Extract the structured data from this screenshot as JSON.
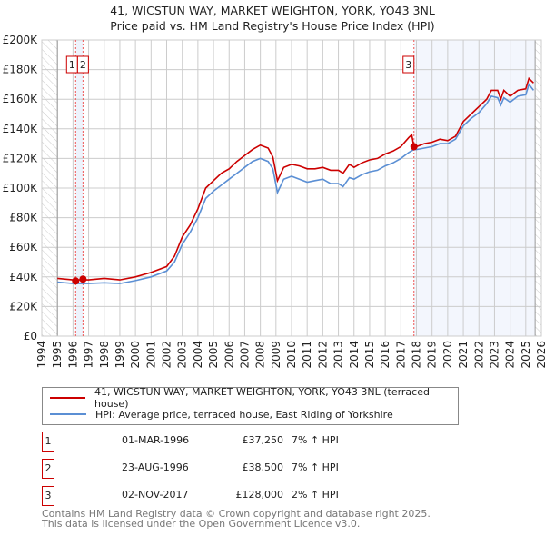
{
  "title_line1": "41, WICSTUN WAY, MARKET WEIGHTON, YORK, YO43 3NL",
  "title_line2": "Price paid vs. HM Land Registry's House Price Index (HPI)",
  "chart_data": {
    "type": "line",
    "xlim": [
      1994,
      2026
    ],
    "ylim": [
      0,
      200000
    ],
    "x_ticks": [
      "1994",
      "1995",
      "1996",
      "1997",
      "1998",
      "1999",
      "2000",
      "2001",
      "2002",
      "2003",
      "2004",
      "2005",
      "2006",
      "2007",
      "2008",
      "2009",
      "2010",
      "2011",
      "2012",
      "2013",
      "2014",
      "2015",
      "2016",
      "2017",
      "2018",
      "2019",
      "2020",
      "2021",
      "2022",
      "2023",
      "2024",
      "2025",
      "2026"
    ],
    "y_ticks": [
      {
        "v": 0,
        "label": "£0"
      },
      {
        "v": 20000,
        "label": "£20K"
      },
      {
        "v": 40000,
        "label": "£40K"
      },
      {
        "v": 60000,
        "label": "£60K"
      },
      {
        "v": 80000,
        "label": "£80K"
      },
      {
        "v": 100000,
        "label": "£100K"
      },
      {
        "v": 120000,
        "label": "£120K"
      },
      {
        "v": 140000,
        "label": "£140K"
      },
      {
        "v": 160000,
        "label": "£160K"
      },
      {
        "v": 180000,
        "label": "£180K"
      },
      {
        "v": 200000,
        "label": "£200K"
      }
    ],
    "grid": true,
    "data_range": [
      1995,
      2025.6
    ],
    "series": [
      {
        "name": "41, WICSTUN WAY, MARKET WEIGHTON, YORK, YO43 3NL (terraced house)",
        "color": "#cc0000",
        "x": [
          1995,
          1996,
          1997,
          1998,
          1999,
          2000,
          2001,
          2002,
          2002.5,
          2003,
          2003.5,
          2004,
          2004.5,
          2005,
          2005.5,
          2006,
          2006.5,
          2007,
          2007.5,
          2008,
          2008.5,
          2008.8,
          2009.1,
          2009.5,
          2010,
          2010.5,
          2011,
          2011.5,
          2012,
          2012.5,
          2013,
          2013.3,
          2013.7,
          2014,
          2014.5,
          2015,
          2015.5,
          2016,
          2016.5,
          2017,
          2017.5,
          2017.7,
          2017.84,
          2018,
          2018.5,
          2019,
          2019.5,
          2020,
          2020.5,
          2021,
          2021.5,
          2022,
          2022.5,
          2022.8,
          2023.2,
          2023.4,
          2023.6,
          2024,
          2024.5,
          2025,
          2025.2,
          2025.5
        ],
        "y": [
          39000,
          38000,
          38000,
          39000,
          38000,
          40000,
          43000,
          47000,
          54000,
          67000,
          75000,
          86000,
          100000,
          105000,
          110000,
          113000,
          118000,
          122000,
          126000,
          129000,
          127000,
          121000,
          105000,
          114000,
          116000,
          115000,
          113000,
          113000,
          114000,
          112000,
          112000,
          110000,
          116000,
          114000,
          117000,
          119000,
          120000,
          123000,
          125000,
          128000,
          134000,
          136000,
          128000,
          128000,
          130000,
          131000,
          133000,
          132000,
          135000,
          145000,
          150000,
          155000,
          160000,
          166000,
          166000,
          160000,
          166000,
          162000,
          166000,
          167000,
          174000,
          171000
        ]
      },
      {
        "name": "HPI: Average price, terraced house, East Riding of Yorkshire",
        "color": "#5b8fd4",
        "x": [
          1995,
          1996,
          1997,
          1998,
          1999,
          2000,
          2001,
          2002,
          2002.5,
          2003,
          2003.5,
          2004,
          2004.5,
          2005,
          2005.5,
          2006,
          2006.5,
          2007,
          2007.5,
          2008,
          2008.5,
          2008.8,
          2009.1,
          2009.5,
          2010,
          2010.5,
          2011,
          2011.5,
          2012,
          2012.5,
          2013,
          2013.3,
          2013.7,
          2014,
          2014.5,
          2015,
          2015.5,
          2016,
          2016.5,
          2017,
          2017.5,
          2017.84,
          2018,
          2018.5,
          2019,
          2019.5,
          2020,
          2020.5,
          2021,
          2021.5,
          2022,
          2022.5,
          2022.8,
          2023.2,
          2023.4,
          2023.6,
          2024,
          2024.5,
          2025,
          2025.2,
          2025.5
        ],
        "y": [
          36500,
          35500,
          35500,
          36000,
          35500,
          37500,
          40000,
          44000,
          50000,
          62000,
          70000,
          80000,
          93000,
          98000,
          102000,
          106000,
          110000,
          114000,
          118000,
          120000,
          118000,
          113000,
          97000,
          106000,
          108000,
          106000,
          104000,
          105000,
          106000,
          103000,
          103000,
          101000,
          107000,
          106000,
          109000,
          111000,
          112000,
          115000,
          117000,
          120000,
          124000,
          126000,
          126000,
          127000,
          128000,
          130000,
          130000,
          133000,
          142000,
          147000,
          151000,
          157000,
          162000,
          161000,
          156000,
          161000,
          158000,
          162000,
          163000,
          170000,
          166000
        ]
      }
    ],
    "sales": [
      {
        "id": "1",
        "x": 1996.17,
        "y": 37250
      },
      {
        "id": "2",
        "x": 1996.64,
        "y": 38500
      },
      {
        "id": "3",
        "x": 2017.84,
        "y": 128000
      }
    ]
  },
  "legend": {
    "property": "41, WICSTUN WAY, MARKET WEIGHTON, YORK, YO43 3NL (terraced house)",
    "hpi": "HPI: Average price, terraced house, East Riding of Yorkshire"
  },
  "transactions": [
    {
      "num": "1",
      "date": "01-MAR-1996",
      "price": "£37,250",
      "hpi": "7% ↑ HPI"
    },
    {
      "num": "2",
      "date": "23-AUG-1996",
      "price": "£38,500",
      "hpi": "7% ↑ HPI"
    },
    {
      "num": "3",
      "date": "02-NOV-2017",
      "price": "£128,000",
      "hpi": "2% ↑ HPI"
    }
  ],
  "footer_line1": "Contains HM Land Registry data © Crown copyright and database right 2025.",
  "footer_line2": "This data is licensed under the Open Government Licence v3.0."
}
